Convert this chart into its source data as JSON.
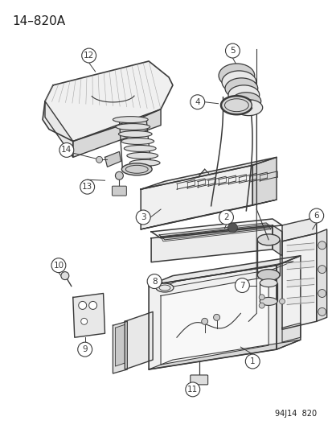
{
  "title": "14–820A",
  "footnote": "94J14  820",
  "bg_color": "#ffffff",
  "line_color": "#3a3a3a",
  "label_color": "#1a1a1a",
  "title_fontsize": 11,
  "label_fontsize": 7.5,
  "footnote_fontsize": 7
}
